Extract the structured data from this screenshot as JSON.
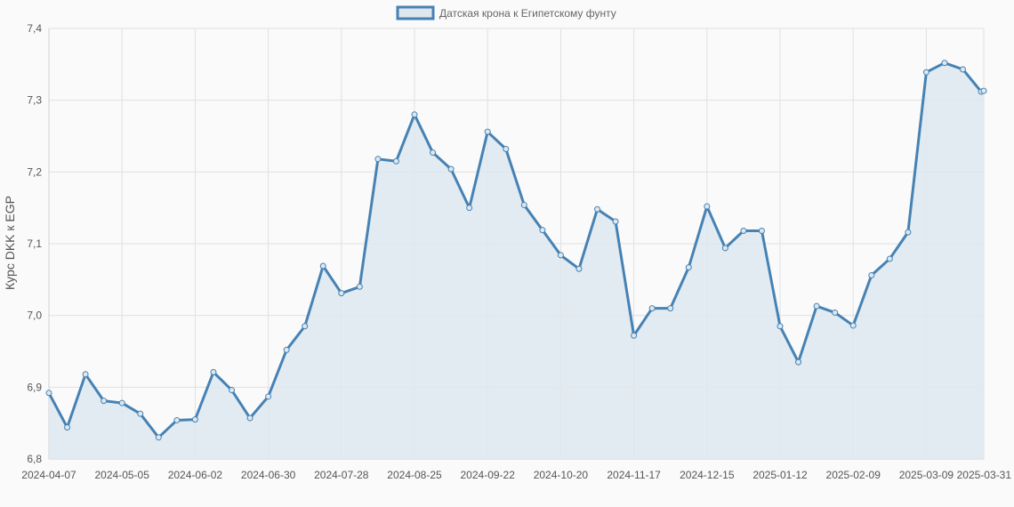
{
  "chart_data": {
    "type": "area",
    "title": "",
    "xlabel": "",
    "ylabel": "Курс DKK к EGP",
    "ylim": [
      6.8,
      7.4
    ],
    "yticks": [
      "6,8",
      "6,9",
      "7,0",
      "7,1",
      "7,2",
      "7,3",
      "7,4"
    ],
    "xticks": [
      "2024-04-07",
      "2024-05-05",
      "2024-06-02",
      "2024-06-30",
      "2024-07-28",
      "2024-08-25",
      "2024-09-22",
      "2024-10-20",
      "2024-11-17",
      "2024-12-15",
      "2025-01-12",
      "2025-02-09",
      "2025-03-09",
      "2025-03-31"
    ],
    "grid": true,
    "legend_position": "top-center",
    "series": [
      {
        "name": "Датская крона к Египетскому фунту",
        "color": "#4682b4",
        "fill": "#dde7ee",
        "x": [
          "2024-04-07",
          "2024-04-14",
          "2024-04-21",
          "2024-04-28",
          "2024-05-05",
          "2024-05-12",
          "2024-05-19",
          "2024-05-26",
          "2024-06-02",
          "2024-06-09",
          "2024-06-16",
          "2024-06-23",
          "2024-06-30",
          "2024-07-07",
          "2024-07-14",
          "2024-07-21",
          "2024-07-28",
          "2024-08-04",
          "2024-08-11",
          "2024-08-18",
          "2024-08-25",
          "2024-09-01",
          "2024-09-08",
          "2024-09-15",
          "2024-09-22",
          "2024-09-29",
          "2024-10-06",
          "2024-10-13",
          "2024-10-20",
          "2024-10-27",
          "2024-11-03",
          "2024-11-10",
          "2024-11-17",
          "2024-11-24",
          "2024-12-01",
          "2024-12-08",
          "2024-12-15",
          "2024-12-22",
          "2024-12-29",
          "2025-01-05",
          "2025-01-12",
          "2025-01-19",
          "2025-01-26",
          "2025-02-02",
          "2025-02-09",
          "2025-02-16",
          "2025-02-23",
          "2025-03-02",
          "2025-03-09",
          "2025-03-16",
          "2025-03-23",
          "2025-03-30",
          "2025-03-31"
        ],
        "values": [
          6.892,
          6.844,
          6.918,
          6.881,
          6.878,
          6.863,
          6.83,
          6.854,
          6.855,
          6.921,
          6.896,
          6.857,
          6.887,
          6.952,
          6.985,
          7.069,
          7.031,
          7.04,
          7.218,
          7.215,
          7.28,
          7.227,
          7.204,
          7.15,
          7.256,
          7.232,
          7.154,
          7.119,
          7.084,
          7.065,
          7.148,
          7.131,
          6.972,
          7.01,
          7.01,
          7.067,
          7.152,
          7.094,
          7.118,
          7.118,
          6.985,
          6.935,
          7.013,
          7.004,
          6.986,
          7.056,
          7.079,
          7.116,
          7.339,
          7.352,
          7.343,
          7.312,
          7.313
        ]
      }
    ]
  }
}
